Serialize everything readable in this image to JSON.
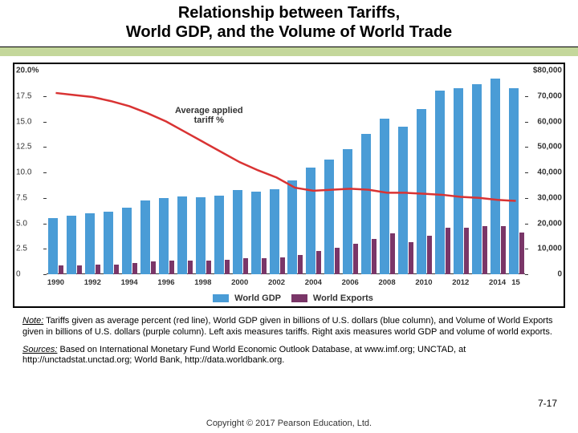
{
  "title": {
    "line1": "Relationship between Tariffs,",
    "line2": "World GDP, and the Volume of World Trade"
  },
  "chart": {
    "type": "combo-bar-line",
    "background_color": "#ffffff",
    "green_band_color": "#c4d79b",
    "y_left": {
      "min": 0,
      "max": 20,
      "ticks": [
        0,
        2.5,
        5.0,
        7.5,
        10.0,
        12.5,
        15.0,
        17.5
      ],
      "top_label": "20.0%",
      "tick_labels": [
        "0",
        "2.5",
        "5.0",
        "7.5",
        "10.0",
        "12.5",
        "15.0",
        "17.5"
      ]
    },
    "y_right": {
      "min": 0,
      "max": 80000,
      "ticks": [
        0,
        10000,
        20000,
        30000,
        40000,
        50000,
        60000,
        70000
      ],
      "top_label": "$80,000",
      "tick_labels": [
        "0",
        "10,000",
        "20,000",
        "30,000",
        "40,000",
        "50,000",
        "60,000",
        "70,000"
      ]
    },
    "years": [
      1990,
      1991,
      1992,
      1993,
      1994,
      1995,
      1996,
      1997,
      1998,
      1999,
      2000,
      2001,
      2002,
      2003,
      2004,
      2005,
      2006,
      2007,
      2008,
      2009,
      2010,
      2011,
      2012,
      2013,
      2014,
      2015
    ],
    "x_labels_shown": [
      1990,
      1992,
      1994,
      1996,
      1998,
      2000,
      2002,
      2004,
      2006,
      2008,
      2010,
      2012,
      2014,
      "15"
    ],
    "world_gdp": [
      22000,
      23000,
      24000,
      24500,
      26000,
      29000,
      30000,
      30500,
      30200,
      31000,
      33000,
      32500,
      33500,
      37000,
      42000,
      45000,
      49000,
      55000,
      61000,
      58000,
      65000,
      72000,
      73000,
      74500,
      77000,
      73000
    ],
    "world_exports": [
      3400,
      3500,
      3800,
      3800,
      4300,
      5100,
      5300,
      5500,
      5400,
      5600,
      6400,
      6200,
      6500,
      7500,
      9100,
      10400,
      12000,
      14000,
      16100,
      12500,
      15200,
      18200,
      18400,
      18900,
      19000,
      16500
    ],
    "tariff_pct": [
      17.8,
      17.6,
      17.4,
      17.0,
      16.5,
      15.8,
      15.0,
      14.0,
      13.0,
      12.0,
      11.0,
      10.2,
      9.5,
      8.5,
      8.2,
      8.3,
      8.4,
      8.3,
      8.0,
      8.0,
      7.9,
      7.8,
      7.6,
      7.5,
      7.3,
      7.2
    ],
    "colors": {
      "gdp": "#4a9cd6",
      "exports": "#7a3668",
      "tariff": "#d93333"
    },
    "bar_width_gdp": 12,
    "bar_width_exp": 6,
    "annotation": {
      "text1": "Average applied",
      "text2": "tariff %"
    },
    "legend": {
      "gdp": "World GDP",
      "exports": "World Exports"
    }
  },
  "notes": {
    "note_label": "Note:",
    "note_text": " Tariffs given as average percent (red line), World GDP given in billions of U.S. dollars (blue column), and Volume of World Exports given in billions of U.S. dollars (purple column). Left axis measures tariffs. Right axis measures world GDP and volume of world exports.",
    "sources_label": "Sources:",
    "sources_text": " Based on International Monetary Fund World Economic Outlook Database, at www.imf.org; UNCTAD, at http://unctadstat.unctad.org; World Bank, http://data.worldbank.org."
  },
  "page_number": "7-17",
  "copyright": "Copyright © 2017 Pearson Education, Ltd."
}
